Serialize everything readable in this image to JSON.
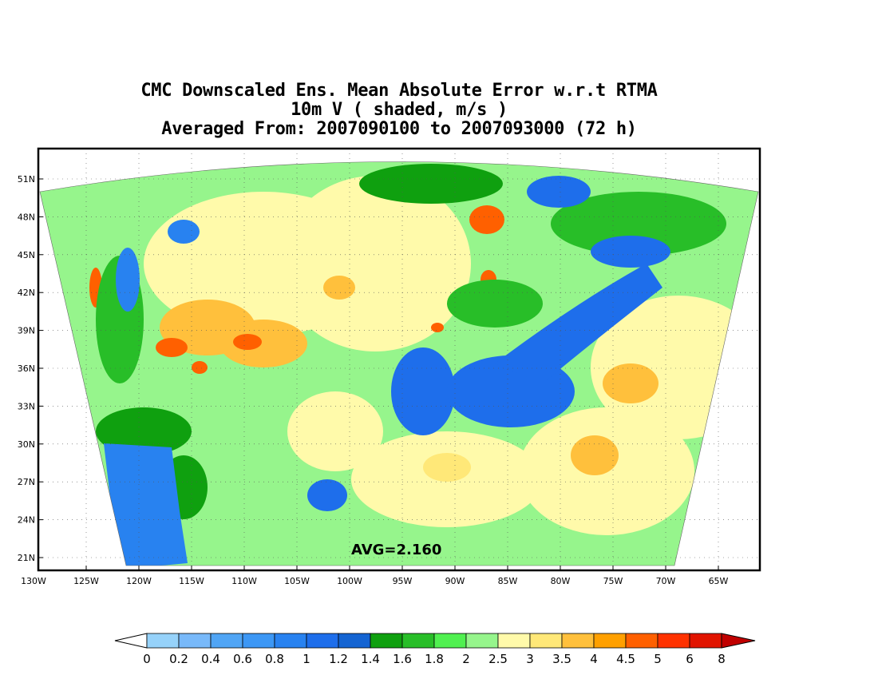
{
  "title": {
    "line1": "CMC Downscaled Ens. Mean Absolute Error w.r.t RTMA",
    "line2": "10m V ( shaded, m/s )",
    "line3": "Averaged From: 2007090100 to 2007093000 (72 h)"
  },
  "map": {
    "avg_label": "AVG=2.160",
    "lat_labels": [
      "51N",
      "48N",
      "45N",
      "42N",
      "39N",
      "36N",
      "33N",
      "30N",
      "27N",
      "24N",
      "21N"
    ],
    "lat_values": [
      51,
      48,
      45,
      42,
      39,
      36,
      33,
      30,
      27,
      24,
      21
    ],
    "lon_labels": [
      "130W",
      "125W",
      "120W",
      "115W",
      "110W",
      "105W",
      "100W",
      "95W",
      "90W",
      "85W",
      "80W",
      "75W",
      "70W",
      "65W"
    ],
    "lon_values": [
      -130,
      -125,
      -120,
      -115,
      -110,
      -105,
      -100,
      -95,
      -90,
      -85,
      -80,
      -75,
      -70,
      -65
    ],
    "grid_lines": true
  },
  "colorbar": {
    "labels": [
      "0",
      "0.2",
      "0.4",
      "0.6",
      "0.8",
      "1",
      "1.2",
      "1.4",
      "1.6",
      "1.8",
      "2",
      "2.5",
      "3",
      "3.5",
      "4",
      "4.5",
      "5",
      "6",
      "8"
    ],
    "colors": [
      "#96d2fa",
      "#78b9fa",
      "#50a5f5",
      "#3c97f5",
      "#2882f0",
      "#1e6eeb",
      "#1464d2",
      "#0fa00f",
      "#28be28",
      "#50f050",
      "#96f58c",
      "#fffaaa",
      "#ffe878",
      "#ffc03c",
      "#ffa000",
      "#ff6000",
      "#ff3200",
      "#e11400",
      "#c00000"
    ]
  },
  "colors": {
    "outside_domain": "#ffffff",
    "frame": "#000000",
    "grid": "#555555"
  }
}
